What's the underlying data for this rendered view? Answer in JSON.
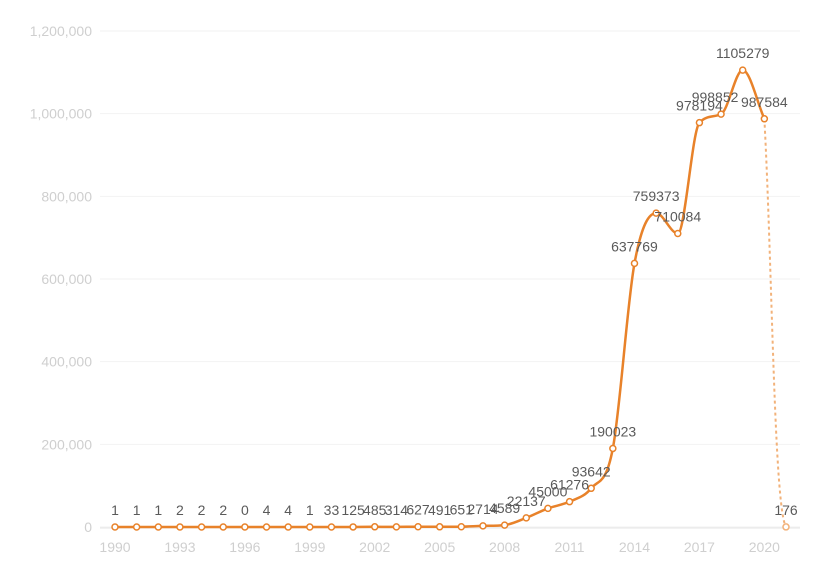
{
  "chart_data": {
    "type": "line",
    "x": [
      1990,
      1991,
      1992,
      1993,
      1994,
      1995,
      1996,
      1997,
      1998,
      1999,
      2000,
      2001,
      2002,
      2003,
      2004,
      2005,
      2006,
      2007,
      2008,
      2009,
      2010,
      2011,
      2012,
      2013,
      2014,
      2015,
      2016,
      2017,
      2018,
      2019,
      2020,
      2021
    ],
    "values": [
      1,
      1,
      1,
      2,
      2,
      2,
      0,
      4,
      4,
      1,
      33,
      125,
      485,
      314,
      627,
      491,
      651,
      2714,
      4589,
      22137,
      45000,
      61276,
      93642,
      190023,
      637769,
      759373,
      710084,
      978194,
      998852,
      1105279,
      987584,
      176
    ],
    "data_labels": [
      "1",
      "1",
      "1",
      "2",
      "2",
      "2",
      "0",
      "4",
      "4",
      "1",
      "33",
      "125",
      "485",
      "314",
      "627",
      "491",
      "651",
      "2714",
      "4589",
      "22137",
      "45000",
      "61276",
      "93642",
      "190023",
      "637769",
      "759373",
      "710084",
      "978194",
      "998852",
      "1105279",
      "987584",
      "176"
    ],
    "dashed_from_index": 30,
    "ylim": [
      0,
      1200000
    ],
    "y_ticks": [
      "0",
      "200,000",
      "400,000",
      "600,000",
      "800,000",
      "1,000,000",
      "1,200,000"
    ],
    "x_tick_labels": [
      "1990",
      "1993",
      "1996",
      "1999",
      "2002",
      "2005",
      "2008",
      "2011",
      "2014",
      "2017",
      "2020"
    ],
    "x_tick_values": [
      1990,
      1993,
      1996,
      1999,
      2002,
      2005,
      2008,
      2011,
      2014,
      2017,
      2020
    ],
    "title": "",
    "xlabel": "",
    "ylabel": "",
    "grid": true,
    "legend": "none",
    "colors": {
      "line": "#e8822a",
      "grid": "#f2f2f2",
      "tick_text": "#cfcfcf",
      "label_text": "#5a5a5a"
    }
  }
}
